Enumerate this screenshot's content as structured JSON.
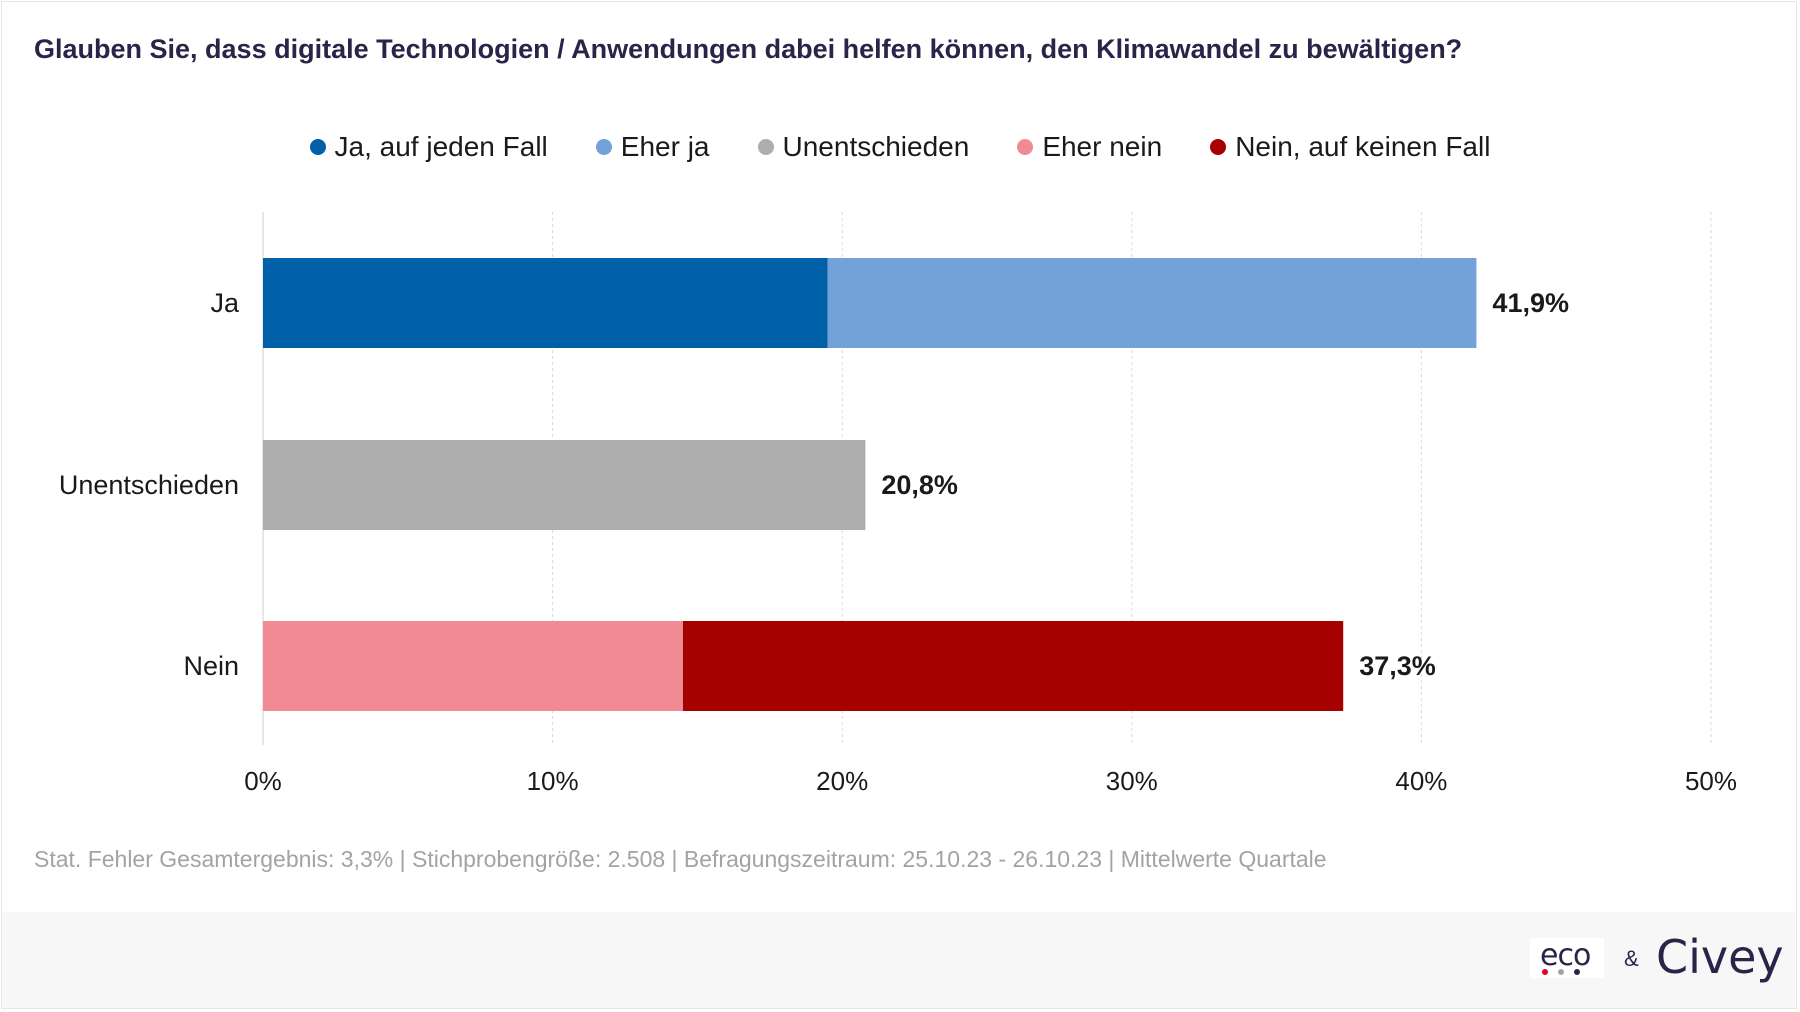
{
  "chart_data": {
    "type": "bar",
    "orientation": "horizontal",
    "stacked": true,
    "title": "Glauben Sie, dass digitale Technologien / Anwendungen dabei helfen können, den Klimawandel zu bewältigen?",
    "categories": [
      "Ja",
      "Unentschieden",
      "Nein"
    ],
    "series": [
      {
        "name": "Ja, auf jeden Fall",
        "color": "#0060a8",
        "values": [
          19.5,
          0,
          0
        ]
      },
      {
        "name": "Eher ja",
        "color": "#72a2d7",
        "values": [
          22.4,
          0,
          0
        ]
      },
      {
        "name": "Unentschieden",
        "color": "#adadad",
        "values": [
          0,
          20.8,
          0
        ]
      },
      {
        "name": "Eher nein",
        "color": "#f08b93",
        "values": [
          0,
          0,
          14.5
        ]
      },
      {
        "name": "Nein, auf keinen Fall",
        "color": "#a60000",
        "values": [
          0,
          0,
          22.8
        ]
      }
    ],
    "totals": [
      41.9,
      20.8,
      37.3
    ],
    "total_labels": [
      "41,9%",
      "20,8%",
      "37,3%"
    ],
    "xlim": [
      0,
      50
    ],
    "xticks": [
      0,
      10,
      20,
      30,
      40,
      50
    ],
    "xtick_labels": [
      "0%",
      "10%",
      "20%",
      "30%",
      "40%",
      "50%"
    ],
    "grid": true,
    "legend_position": "top"
  },
  "footnote": "Stat. Fehler Gesamtergebnis: 3,3% | Stichprobengröße: 2.508 | Befragungszeitraum: 25.10.23 - 26.10.23 | Mittelwerte Quartale",
  "brand": {
    "eco": "eco",
    "ampersand": "&",
    "civey": "Civey",
    "eco_dot_colors": [
      "#e4002b",
      "#a3a3a3",
      "#2b2348"
    ]
  }
}
